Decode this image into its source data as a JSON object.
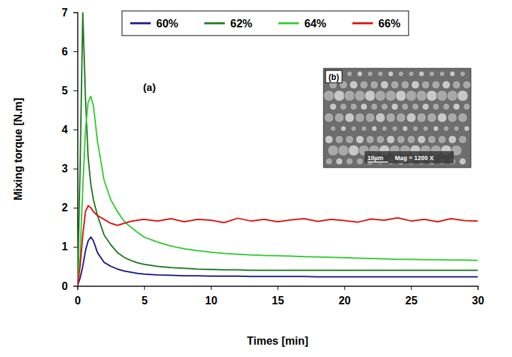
{
  "chart_data": {
    "type": "line",
    "x_label": "Times [min]",
    "y_label": "Mixing torque [N.m]",
    "panel_label": "(a)",
    "inset": {
      "label": "(b)",
      "scale_text": "10µm",
      "magnification_text": "Mag = 1200 X"
    },
    "xlim": [
      0,
      30
    ],
    "xticks": [
      0,
      5,
      10,
      15,
      20,
      25,
      30
    ],
    "ylim": [
      0,
      7
    ],
    "yticks": [
      0,
      1,
      2,
      3,
      4,
      5,
      6,
      7
    ],
    "grid": false,
    "legend": "top",
    "x": [
      0,
      0.2,
      0.4,
      0.6,
      0.8,
      1,
      1.2,
      1.5,
      2,
      2.5,
      3,
      3.5,
      4,
      4.5,
      5,
      6,
      7,
      8,
      9,
      10,
      11,
      12,
      13,
      14,
      15,
      16,
      17,
      18,
      19,
      20,
      21,
      22,
      23,
      24,
      25,
      26,
      27,
      28,
      29,
      30
    ],
    "series": [
      {
        "name": "60%",
        "color": "#1c1c8c",
        "values": [
          0,
          0.2,
          0.5,
          0.9,
          1.15,
          1.25,
          1.15,
          0.85,
          0.6,
          0.5,
          0.43,
          0.38,
          0.35,
          0.32,
          0.3,
          0.28,
          0.27,
          0.26,
          0.26,
          0.25,
          0.25,
          0.25,
          0.24,
          0.24,
          0.24,
          0.24,
          0.24,
          0.23,
          0.23,
          0.23,
          0.23,
          0.23,
          0.23,
          0.23,
          0.23,
          0.23,
          0.23,
          0.23,
          0.23,
          0.23
        ]
      },
      {
        "name": "62%",
        "color": "#217a21",
        "values": [
          0,
          3.0,
          7.0,
          4.8,
          3.3,
          2.6,
          2.2,
          1.8,
          1.3,
          1.05,
          0.85,
          0.73,
          0.65,
          0.59,
          0.55,
          0.5,
          0.47,
          0.45,
          0.43,
          0.42,
          0.41,
          0.41,
          0.4,
          0.4,
          0.4,
          0.4,
          0.4,
          0.4,
          0.4,
          0.4,
          0.4,
          0.4,
          0.4,
          0.4,
          0.4,
          0.4,
          0.4,
          0.4,
          0.4,
          0.4
        ]
      },
      {
        "name": "64%",
        "color": "#33cc33",
        "values": [
          0,
          0.8,
          2.5,
          4.0,
          4.7,
          4.85,
          4.6,
          3.7,
          2.7,
          2.2,
          1.9,
          1.65,
          1.5,
          1.37,
          1.25,
          1.12,
          1.02,
          0.95,
          0.9,
          0.86,
          0.83,
          0.81,
          0.79,
          0.78,
          0.77,
          0.76,
          0.75,
          0.74,
          0.73,
          0.72,
          0.71,
          0.7,
          0.69,
          0.68,
          0.68,
          0.67,
          0.67,
          0.66,
          0.66,
          0.65
        ]
      },
      {
        "name": "66%",
        "color": "#e01010",
        "values": [
          0,
          0.5,
          1.3,
          1.9,
          2.05,
          2.0,
          1.9,
          1.8,
          1.7,
          1.6,
          1.55,
          1.6,
          1.65,
          1.68,
          1.7,
          1.66,
          1.72,
          1.64,
          1.7,
          1.68,
          1.62,
          1.73,
          1.66,
          1.7,
          1.64,
          1.69,
          1.72,
          1.65,
          1.7,
          1.67,
          1.63,
          1.71,
          1.68,
          1.74,
          1.66,
          1.7,
          1.64,
          1.72,
          1.67,
          1.66
        ]
      }
    ]
  }
}
